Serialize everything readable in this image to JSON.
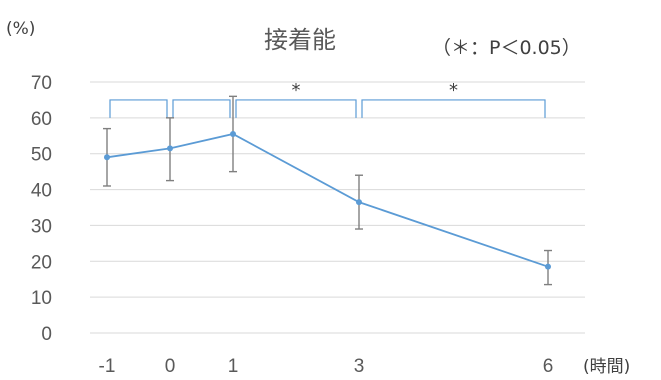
{
  "chart_data": {
    "type": "line",
    "title": "接着能",
    "note": "（＊：P＜0.05）",
    "ylabel_unit": "(%)",
    "xlabel_unit": "(時間)",
    "x_ticks": [
      "-1",
      "0",
      "1",
      "3",
      "6"
    ],
    "x": [
      -1,
      0,
      1,
      3,
      6
    ],
    "ylim": [
      0,
      70
    ],
    "y_ticks": [
      "0",
      "10",
      "20",
      "30",
      "40",
      "50",
      "60",
      "70"
    ],
    "grid": true,
    "series": [
      {
        "values": [
          49,
          51.5,
          55.5,
          36.5,
          18.5
        ],
        "error_low": [
          41,
          42.5,
          45,
          29,
          13.5
        ],
        "error_high": [
          57,
          60,
          66,
          44,
          23
        ]
      }
    ],
    "significance": [
      {
        "from": -1,
        "to": 0,
        "label": ""
      },
      {
        "from": 0,
        "to": 1,
        "label": ""
      },
      {
        "from": 1,
        "to": 3,
        "label": "*"
      },
      {
        "from": 3,
        "to": 6,
        "label": "*"
      }
    ],
    "colors": {
      "line": "#5b9bd5",
      "error_bar": "#7f7f7f",
      "grid": "#d9d9d9",
      "bracket": "#5b9bd5"
    }
  }
}
